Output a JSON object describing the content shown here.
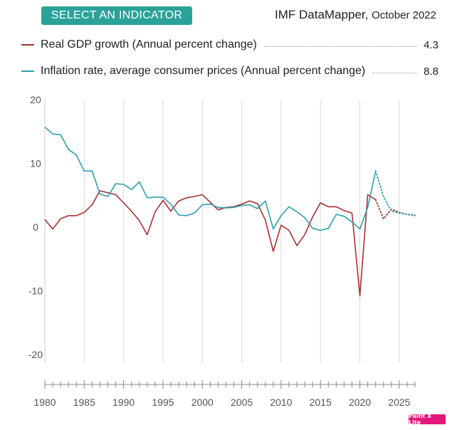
{
  "header": {
    "select_button": "SELECT AN INDICATOR",
    "brand": "IMF DataMapper,",
    "date": "October 2022"
  },
  "legend": [
    {
      "label": "Real GDP growth (Annual percent change)",
      "value": "4.3",
      "color": "#a83232"
    },
    {
      "label": "Inflation rate, average consumer prices (Annual percent change)",
      "value": "8.8",
      "color": "#2e9fae"
    }
  ],
  "badge": "Paint X Lite",
  "chart_data": {
    "type": "line",
    "title": "",
    "xlabel": "",
    "ylabel": "",
    "xlim": [
      1980,
      2027
    ],
    "ylim": [
      -20,
      20
    ],
    "y_ticks": [
      20,
      10,
      0,
      -10,
      -20
    ],
    "x_ticks": [
      1980,
      1985,
      1990,
      1995,
      2000,
      2005,
      2010,
      2015,
      2020,
      2025
    ],
    "grid": true,
    "projection_start": 2022,
    "series": [
      {
        "name": "Real GDP growth (Annual percent change)",
        "color": "#a83232",
        "x": [
          1980,
          1981,
          1982,
          1983,
          1984,
          1985,
          1986,
          1987,
          1988,
          1989,
          1990,
          1991,
          1992,
          1993,
          1994,
          1995,
          1996,
          1997,
          1998,
          1999,
          2000,
          2001,
          2002,
          2003,
          2004,
          2005,
          2006,
          2007,
          2008,
          2009,
          2010,
          2011,
          2012,
          2013,
          2014,
          2015,
          2016,
          2017,
          2018,
          2019,
          2020,
          2021,
          2022,
          2023,
          2024,
          2025,
          2026,
          2027
        ],
        "values": [
          1.2,
          -0.3,
          1.3,
          1.8,
          1.8,
          2.3,
          3.5,
          5.7,
          5.4,
          5.1,
          3.8,
          2.5,
          1.0,
          -1.2,
          2.4,
          4.2,
          2.5,
          4.1,
          4.6,
          4.8,
          5.1,
          3.9,
          2.7,
          3.1,
          3.2,
          3.6,
          4.1,
          3.7,
          1.1,
          -3.8,
          0.3,
          -0.5,
          -2.9,
          -1.2,
          1.6,
          3.8,
          3.2,
          3.2,
          2.6,
          2.2,
          -10.8,
          5.1,
          4.3,
          1.3,
          2.8,
          2.3,
          2.0,
          1.8
        ]
      },
      {
        "name": "Inflation rate, average consumer prices (Annual percent change)",
        "color": "#2e9fae",
        "x": [
          1980,
          1981,
          1982,
          1983,
          1984,
          1985,
          1986,
          1987,
          1988,
          1989,
          1990,
          1991,
          1992,
          1993,
          1994,
          1995,
          1996,
          1997,
          1998,
          1999,
          2000,
          2001,
          2002,
          2003,
          2004,
          2005,
          2006,
          2007,
          2008,
          2009,
          2010,
          2011,
          2012,
          2013,
          2014,
          2015,
          2016,
          2017,
          2018,
          2019,
          2020,
          2021,
          2022,
          2023,
          2024,
          2025,
          2026,
          2027
        ],
        "values": [
          15.7,
          14.6,
          14.5,
          12.2,
          11.3,
          8.8,
          8.8,
          5.2,
          4.8,
          6.8,
          6.7,
          5.9,
          7.1,
          4.6,
          4.7,
          4.7,
          3.6,
          1.9,
          1.8,
          2.2,
          3.5,
          3.6,
          3.1,
          3.0,
          3.1,
          3.4,
          3.5,
          2.9,
          4.1,
          -0.3,
          1.8,
          3.2,
          2.4,
          1.5,
          -0.2,
          -0.5,
          -0.2,
          2.0,
          1.7,
          0.8,
          -0.3,
          3.1,
          8.8,
          4.8,
          2.5,
          2.2,
          2.0,
          1.9
        ]
      }
    ]
  }
}
